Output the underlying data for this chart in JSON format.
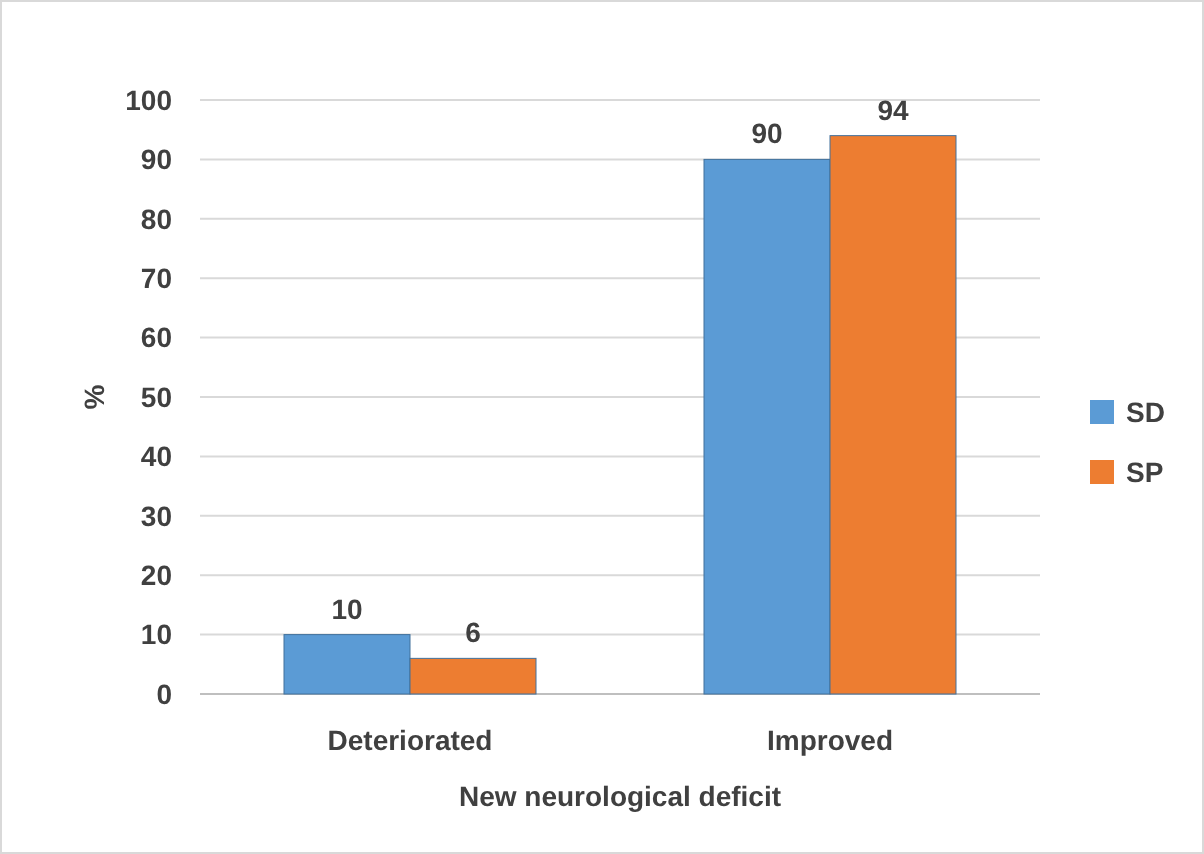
{
  "chart_data": {
    "type": "bar",
    "xlabel": "New neurological deficit",
    "ylabel": "%",
    "categories": [
      "Deteriorated",
      "Improved"
    ],
    "series": [
      {
        "name": "SD",
        "color": "#5b9bd5",
        "values": [
          10,
          90
        ]
      },
      {
        "name": "SP",
        "color": "#ed7d31",
        "values": [
          6,
          94
        ]
      }
    ],
    "ylim": [
      0,
      100
    ],
    "yticks": [
      0,
      10,
      20,
      30,
      40,
      50,
      60,
      70,
      80,
      90,
      100
    ],
    "grid": "y",
    "legend": "right",
    "data_labels": true
  }
}
